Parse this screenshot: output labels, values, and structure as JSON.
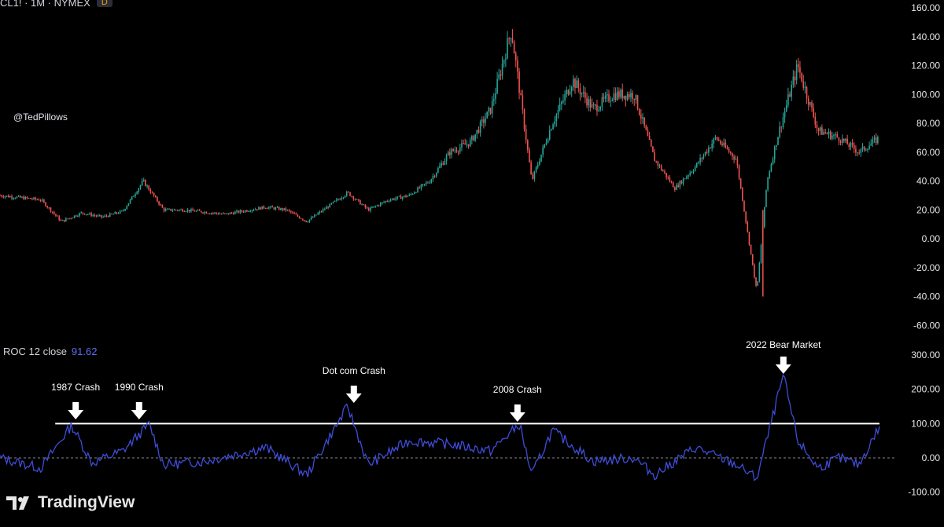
{
  "header": {
    "symbol_text": "CL1! · 1M · NYMEX",
    "badge": "D"
  },
  "watermark": "@TedPillows",
  "indicator": {
    "name": "ROC 12 close",
    "value": "91.62"
  },
  "brand": {
    "name": "TradingView"
  },
  "colors": {
    "background": "#000000",
    "up_candle": "#26a69a",
    "down_candle": "#ef5350",
    "roc_line": "#3f4dd9",
    "threshold_line": "#ffffff",
    "axis_text": "#e6e6e6"
  },
  "chart_data": [
    {
      "type": "candlestick",
      "symbol": "CL1!",
      "interval": "1M",
      "exchange": "NYMEX",
      "y_axis_ticks": [
        "160.00",
        "140.00",
        "120.00",
        "100.00",
        "80.00",
        "60.00",
        "40.00",
        "20.00",
        "0.00",
        "-20.00",
        "-40.00",
        "-60.00"
      ],
      "ylim": [
        -60,
        160
      ],
      "price_path_approx": [
        [
          1983,
          30
        ],
        [
          1985,
          27
        ],
        [
          1986,
          12
        ],
        [
          1987,
          18
        ],
        [
          1988,
          15
        ],
        [
          1989,
          19
        ],
        [
          1990,
          40
        ],
        [
          1991,
          20
        ],
        [
          1992,
          20
        ],
        [
          1994,
          17
        ],
        [
          1996,
          22
        ],
        [
          1997,
          20
        ],
        [
          1998,
          12
        ],
        [
          1999,
          22
        ],
        [
          2000,
          32
        ],
        [
          2001,
          20
        ],
        [
          2002,
          27
        ],
        [
          2003,
          30
        ],
        [
          2004,
          40
        ],
        [
          2005,
          60
        ],
        [
          2006,
          67
        ],
        [
          2007,
          90
        ],
        [
          2008,
          145
        ],
        [
          2009,
          40
        ],
        [
          2010,
          80
        ],
        [
          2011,
          110
        ],
        [
          2012,
          90
        ],
        [
          2013,
          100
        ],
        [
          2014,
          100
        ],
        [
          2015,
          55
        ],
        [
          2016,
          35
        ],
        [
          2017,
          50
        ],
        [
          2018,
          70
        ],
        [
          2019,
          55
        ],
        [
          2020,
          -37
        ],
        [
          2020.5,
          40
        ],
        [
          2021,
          70
        ],
        [
          2022,
          120
        ],
        [
          2023,
          75
        ],
        [
          2024,
          70
        ],
        [
          2025,
          60
        ],
        [
          2026,
          70
        ]
      ]
    },
    {
      "type": "line",
      "indicator": "ROC 12 close",
      "last_value": 91.62,
      "y_axis_ticks": [
        "300.00",
        "200.00",
        "100.00",
        "0.00",
        "-100.00"
      ],
      "ylim": [
        -100,
        300
      ],
      "threshold": 100,
      "zero_line": 0,
      "series_path_approx": [
        [
          1983,
          0
        ],
        [
          1985,
          -30
        ],
        [
          1986.5,
          95
        ],
        [
          1987.5,
          -15
        ],
        [
          1989,
          20
        ],
        [
          1990.3,
          98
        ],
        [
          1991,
          -20
        ],
        [
          1993,
          -10
        ],
        [
          1996,
          30
        ],
        [
          1998,
          -50
        ],
        [
          2000,
          150
        ],
        [
          2001,
          -20
        ],
        [
          2003,
          50
        ],
        [
          2005,
          40
        ],
        [
          2007,
          20
        ],
        [
          2008.4,
          98
        ],
        [
          2009,
          -50
        ],
        [
          2010,
          80
        ],
        [
          2012,
          -10
        ],
        [
          2014,
          0
        ],
        [
          2015,
          -50
        ],
        [
          2017,
          30
        ],
        [
          2019,
          -20
        ],
        [
          2020,
          -60
        ],
        [
          2021.3,
          240
        ],
        [
          2022,
          50
        ],
        [
          2023,
          -30
        ],
        [
          2024,
          0
        ],
        [
          2025,
          -20
        ],
        [
          2026,
          91.62
        ]
      ],
      "annotations": [
        {
          "label": "1987 Crash"
        },
        {
          "label": "1990 Crash"
        },
        {
          "label": "Dot com Crash"
        },
        {
          "label": "2008 Crash"
        },
        {
          "label": "2022 Bear Market"
        }
      ]
    }
  ]
}
